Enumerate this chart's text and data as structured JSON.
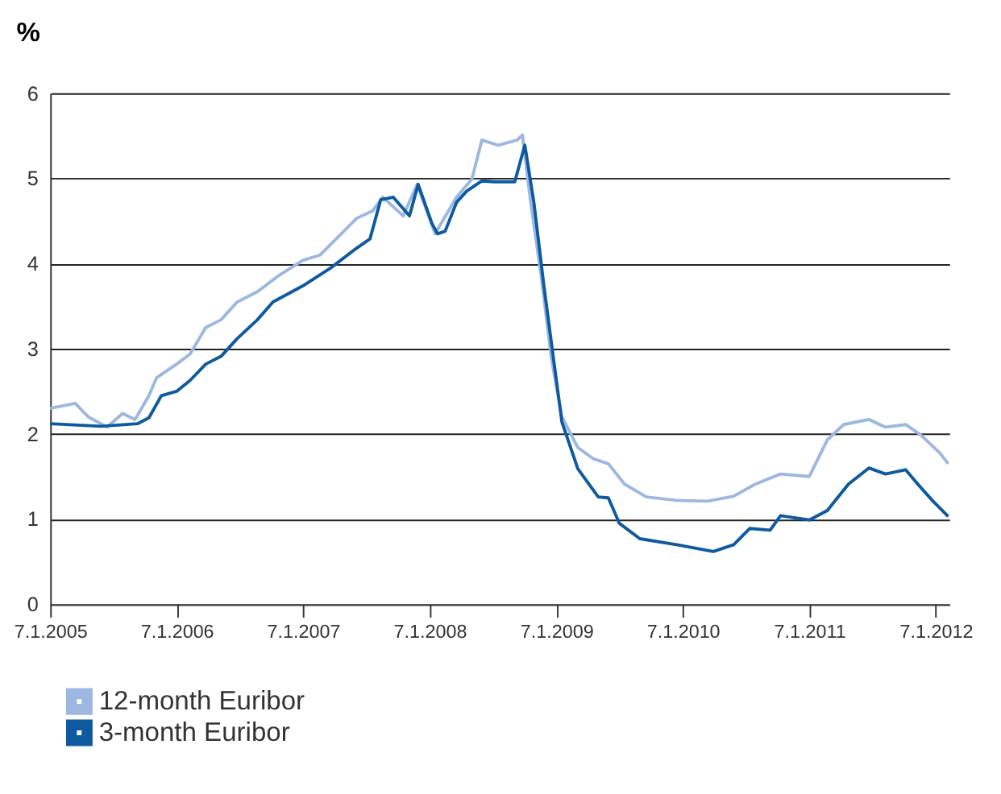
{
  "chart_data": {
    "type": "line",
    "ylabel": "%",
    "xlim": [
      "2005-01-07",
      "2012-02-15"
    ],
    "xticks": [
      {
        "value": "2005-01-07",
        "label": "7.1.2005"
      },
      {
        "value": "2006-01-07",
        "label": "7.1.2006"
      },
      {
        "value": "2007-01-07",
        "label": "7.1.2007"
      },
      {
        "value": "2008-01-07",
        "label": "7.1.2008"
      },
      {
        "value": "2009-01-07",
        "label": "7.1.2009"
      },
      {
        "value": "2010-01-07",
        "label": "7.1.2010"
      },
      {
        "value": "2011-01-07",
        "label": "7.1.2011"
      },
      {
        "value": "2012-01-07",
        "label": "7.1.2012"
      }
    ],
    "ylim": [
      0,
      6
    ],
    "yticks": [
      0,
      1,
      2,
      3,
      4,
      5,
      6
    ],
    "grid": "y",
    "legend": "bottom left",
    "line_style": "solid",
    "marker": "none",
    "series": [
      {
        "name": "12-month Euribor",
        "color": "#9db8e0",
        "x": [
          "2005-01-07",
          "2005-03-20",
          "2005-04-27",
          "2005-06-20",
          "2005-08-04",
          "2005-09-09",
          "2005-10-19",
          "2005-11-10",
          "2006-01-07",
          "2006-02-15",
          "2006-04-01",
          "2006-05-15",
          "2006-07-01",
          "2006-08-28",
          "2006-10-29",
          "2007-01-07",
          "2007-02-25",
          "2007-04-27",
          "2007-06-10",
          "2007-07-27",
          "2007-08-25",
          "2007-10-23",
          "2007-12-02",
          "2008-01-23",
          "2008-03-25",
          "2008-05-08",
          "2008-06-06",
          "2008-07-23",
          "2008-09-16",
          "2008-10-01",
          "2008-10-23",
          "2008-11-24",
          "2008-12-24",
          "2009-01-23",
          "2009-03-10",
          "2009-04-23",
          "2009-06-06",
          "2009-07-23",
          "2009-09-24",
          "2009-12-20",
          "2010-03-20",
          "2010-06-03",
          "2010-08-04",
          "2010-10-16",
          "2011-01-07",
          "2011-02-28",
          "2011-04-16",
          "2011-06-28",
          "2011-08-15",
          "2011-10-12",
          "2011-11-24",
          "2012-01-18",
          "2012-02-12"
        ],
        "values": [
          2.3,
          2.36,
          2.2,
          2.08,
          2.24,
          2.17,
          2.45,
          2.66,
          2.82,
          2.94,
          3.25,
          3.34,
          3.55,
          3.67,
          3.86,
          4.04,
          4.1,
          4.35,
          4.53,
          4.62,
          4.78,
          4.56,
          4.93,
          4.35,
          4.78,
          4.99,
          5.45,
          5.39,
          5.45,
          5.51,
          4.78,
          3.86,
          2.88,
          2.2,
          1.84,
          1.71,
          1.65,
          1.41,
          1.26,
          1.22,
          1.21,
          1.27,
          1.41,
          1.53,
          1.5,
          1.93,
          2.11,
          2.17,
          2.08,
          2.11,
          1.99,
          1.78,
          1.65
        ]
      },
      {
        "name": "3-month Euribor",
        "color": "#0d5aa0",
        "x": [
          "2005-01-07",
          "2005-06-03",
          "2005-09-16",
          "2005-10-19",
          "2005-11-24",
          "2006-01-07",
          "2006-02-15",
          "2006-04-01",
          "2006-05-15",
          "2006-07-01",
          "2006-08-28",
          "2006-10-12",
          "2007-01-07",
          "2007-03-28",
          "2007-06-10",
          "2007-07-19",
          "2007-08-19",
          "2007-09-24",
          "2007-11-10",
          "2007-12-05",
          "2008-01-14",
          "2008-01-30",
          "2008-02-21",
          "2008-03-25",
          "2008-04-23",
          "2008-06-06",
          "2008-07-12",
          "2008-09-09",
          "2008-10-08",
          "2008-11-03",
          "2008-12-02",
          "2008-12-24",
          "2009-01-23",
          "2009-03-10",
          "2009-05-08",
          "2009-06-06",
          "2009-07-08",
          "2009-09-05",
          "2009-12-20",
          "2010-04-05",
          "2010-06-03",
          "2010-07-19",
          "2010-09-16",
          "2010-10-16",
          "2011-01-07",
          "2011-02-28",
          "2011-04-30",
          "2011-06-28",
          "2011-08-15",
          "2011-10-12",
          "2011-11-10",
          "2011-12-28",
          "2012-02-12"
        ],
        "values": [
          2.12,
          2.09,
          2.12,
          2.19,
          2.45,
          2.5,
          2.63,
          2.82,
          2.91,
          3.12,
          3.34,
          3.55,
          3.74,
          3.95,
          4.18,
          4.29,
          4.75,
          4.78,
          4.56,
          4.93,
          4.47,
          4.35,
          4.38,
          4.72,
          4.85,
          4.97,
          4.96,
          4.96,
          5.39,
          4.72,
          3.74,
          3.06,
          2.14,
          1.59,
          1.26,
          1.25,
          0.95,
          0.77,
          0.7,
          0.62,
          0.7,
          0.89,
          0.87,
          1.04,
          0.99,
          1.1,
          1.41,
          1.6,
          1.53,
          1.58,
          1.44,
          1.22,
          1.03
        ]
      }
    ]
  }
}
